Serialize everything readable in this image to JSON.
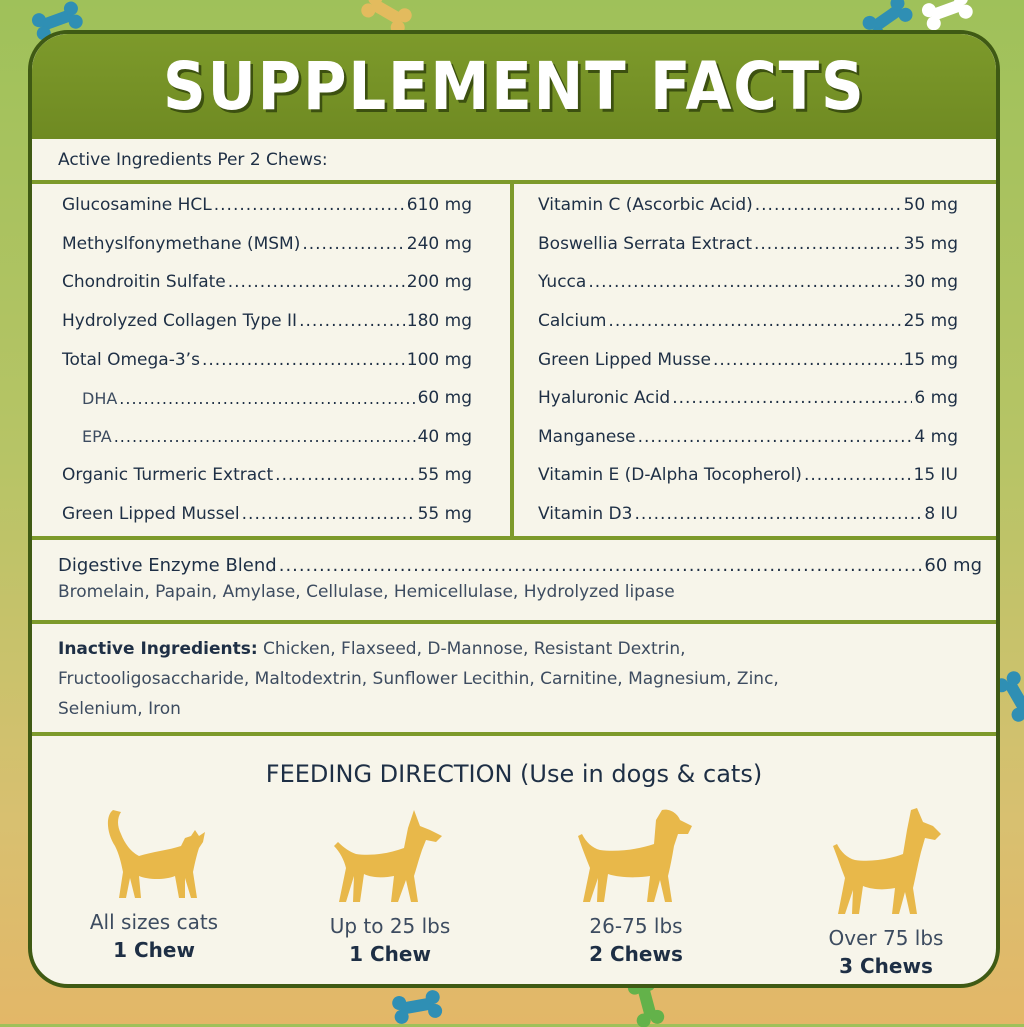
{
  "header": {
    "title": "SUPPLEMENT FACTS"
  },
  "per_serving": "Active Ingredients Per 2 Chews:",
  "left_ingredients": [
    {
      "name": "Glucosamine HCL",
      "amount": "610 mg",
      "sub": false
    },
    {
      "name": "Methyslfonymethane (MSM)",
      "amount": "240 mg",
      "sub": false
    },
    {
      "name": "Chondroitin Sulfate",
      "amount": "200 mg",
      "sub": false
    },
    {
      "name": "Hydrolyzed Collagen Type II",
      "amount": "180 mg",
      "sub": false
    },
    {
      "name": "Total Omega-3’s",
      "amount": "100 mg",
      "sub": false
    },
    {
      "name": "DHA",
      "amount": "60 mg",
      "sub": true
    },
    {
      "name": "EPA",
      "amount": "40 mg",
      "sub": true
    },
    {
      "name": "Organic Turmeric Extract",
      "amount": "55 mg",
      "sub": false
    },
    {
      "name": "Green Lipped Mussel",
      "amount": "55 mg",
      "sub": false
    }
  ],
  "right_ingredients": [
    {
      "name": "Vitamin C (Ascorbic Acid)",
      "amount": "50 mg"
    },
    {
      "name": "Boswellia Serrata Extract",
      "amount": "35 mg"
    },
    {
      "name": "Yucca",
      "amount": "30 mg"
    },
    {
      "name": "Calcium",
      "amount": "25 mg"
    },
    {
      "name": "Green Lipped Musse",
      "amount": "15 mg"
    },
    {
      "name": "Hyaluronic Acid",
      "amount": "6 mg"
    },
    {
      "name": "Manganese",
      "amount": "4 mg"
    },
    {
      "name": "Vitamin E (D-Alpha Tocopherol)",
      "amount": "15 IU"
    },
    {
      "name": "Vitamin D3",
      "amount": "8 IU"
    }
  ],
  "enzyme": {
    "name": "Digestive Enzyme Blend",
    "amount": "60 mg",
    "components": "Bromelain, Papain, Amylase, Cellulase, Hemicellulase, Hydrolyzed lipase"
  },
  "inactive": {
    "label": "Inactive Ingredients:",
    "text": " Chicken, Flaxseed, D-Mannose, Resistant Dextrin, Fructooligosaccharide,  Maltodextrin, Sunflower Lecithin, Carnitine, Magnesium, Zinc, Selenium, Iron"
  },
  "feeding": {
    "title": "FEEDING DIRECTION (Use in dogs & cats)",
    "items": [
      {
        "animal": "cat-icon",
        "range": "All sizes cats",
        "dose": "1 Chew"
      },
      {
        "animal": "small-dog-icon",
        "range": "Up to 25 lbs",
        "dose": "1 Chew"
      },
      {
        "animal": "medium-dog-icon",
        "range": "26-75 lbs",
        "dose": "2 Chews"
      },
      {
        "animal": "large-dog-icon",
        "range": "Over 75 lbs",
        "dose": "3 Chews"
      }
    ]
  },
  "colors": {
    "header_green": "#7d9a2b",
    "border_green": "#3f5a14",
    "text_navy": "#1e2f45",
    "animal_gold": "#e8b84a",
    "panel_bg": "#f7f5ea"
  }
}
